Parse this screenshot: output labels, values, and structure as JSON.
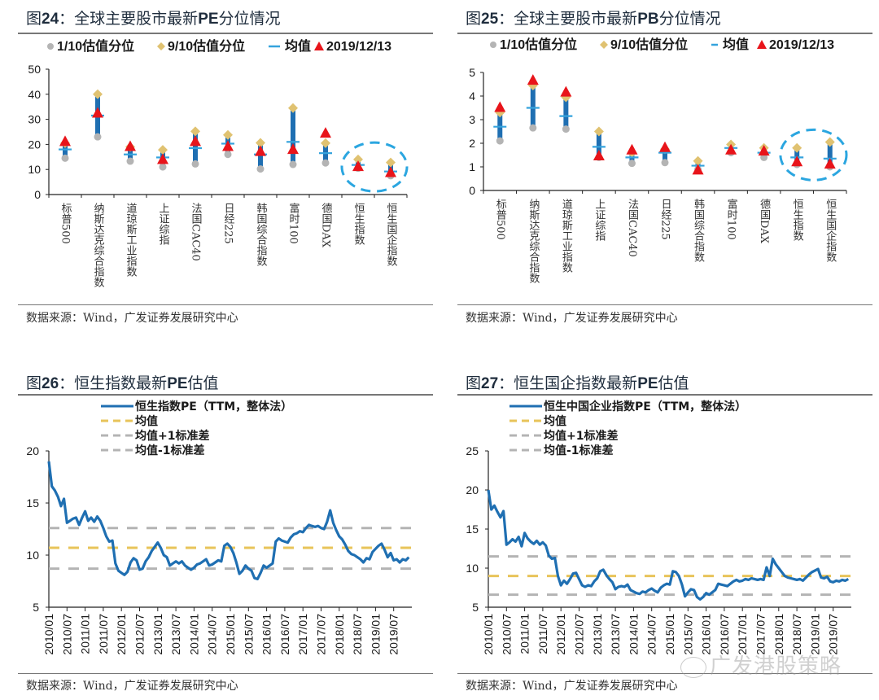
{
  "charts_meta": {
    "source": "数据来源：Wind，广发证券发展研究中心",
    "watermark": "广发港股策略"
  },
  "chart_data": [
    {
      "id": "fig24",
      "type": "scatter",
      "title_prefix": "图",
      "title_num": "24",
      "title_sep": "：",
      "title_body_a": "全球主要股市最新",
      "title_bold": "PE",
      "title_body_b": "分位情况",
      "legend": [
        "1/10估值分位",
        "9/10估值分位",
        "均值",
        "2019/12/13"
      ],
      "categories": [
        "标普500",
        "纳斯达克综合指数",
        "道琼斯工业指数",
        "上证综指",
        "法国CAC40",
        "日经225",
        "韩国综合指数",
        "富时100",
        "德国DAX",
        "恒生指数",
        "恒生国企指数"
      ],
      "ylim": [
        0,
        50
      ],
      "yticks": [
        0,
        10,
        20,
        30,
        40,
        50
      ],
      "series": [
        {
          "name": "1/10估值分位",
          "values": [
            14.5,
            23,
            13.3,
            11,
            12.2,
            16,
            10.2,
            12,
            12.6,
            10.5,
            7.5
          ]
        },
        {
          "name": "9/10估值分位",
          "values": [
            20.5,
            40,
            19,
            17.8,
            25.2,
            23.8,
            20.6,
            34.5,
            20.5,
            14,
            12.8
          ]
        },
        {
          "name": "均值",
          "values": [
            18,
            31.5,
            16,
            14.8,
            18.5,
            20.3,
            16,
            21,
            16.5,
            11.8,
            9.2
          ]
        },
        {
          "name": "2019/12/13",
          "values": [
            21,
            32.3,
            19,
            13.8,
            21,
            19,
            17,
            17.8,
            24.3,
            11,
            8.6
          ]
        }
      ],
      "highlight": [
        "恒生指数",
        "恒生国企指数"
      ],
      "colors": {
        "low": "#b4b4b4",
        "high": "#e0c271",
        "mean": "#35a3dd",
        "latest": "#e8141a",
        "range": "#1f6fb2",
        "highlight": "#2ba6e0"
      }
    },
    {
      "id": "fig25",
      "type": "scatter",
      "title_prefix": "图",
      "title_num": "25",
      "title_sep": "：",
      "title_body_a": "全球主要股市最新",
      "title_bold": "PB",
      "title_body_b": "分位情况",
      "legend": [
        "1/10估值分位",
        "9/10估值分位",
        "均值",
        "2019/12/13"
      ],
      "categories": [
        "标普500",
        "纳斯达克综合指数",
        "道琼斯工业指数",
        "上证综指",
        "法国CAC40",
        "日经225",
        "韩国综合指数",
        "富时100",
        "德国DAX",
        "恒生指数",
        "恒生国企指数"
      ],
      "ylim": [
        0,
        5
      ],
      "yticks": [
        0,
        1,
        2,
        3,
        4,
        5
      ],
      "series": [
        {
          "name": "1/10估值分位",
          "values": [
            2.1,
            2.65,
            2.6,
            1.4,
            1.15,
            1.18,
            0.9,
            1.6,
            1.4,
            1.1,
            1.0
          ]
        },
        {
          "name": "9/10估值分位",
          "values": [
            3.3,
            4.45,
            3.95,
            2.5,
            1.6,
            1.75,
            1.25,
            1.95,
            1.8,
            1.8,
            2.05
          ]
        },
        {
          "name": "均值",
          "values": [
            2.7,
            3.5,
            3.15,
            1.85,
            1.4,
            1.6,
            1.05,
            1.8,
            1.6,
            1.4,
            1.35
          ]
        },
        {
          "name": "2019/12/13",
          "values": [
            3.5,
            4.65,
            4.15,
            1.45,
            1.7,
            1.8,
            0.85,
            1.7,
            1.65,
            1.2,
            1.1
          ]
        }
      ],
      "highlight": [
        "恒生指数",
        "恒生国企指数"
      ],
      "colors": {
        "low": "#b4b4b4",
        "high": "#e0c271",
        "mean": "#35a3dd",
        "latest": "#e8141a",
        "range": "#1f6fb2",
        "highlight": "#2ba6e0"
      }
    },
    {
      "id": "fig26",
      "type": "line",
      "title_prefix": "图",
      "title_num": "26",
      "title_sep": "：",
      "title_body_a": "恒生指数最新",
      "title_bold": "PE",
      "title_body_b": "估值",
      "legend": [
        "恒生指数PE（TTM，整体法）",
        "均值",
        "均值+1标准差",
        "均值-1标准差"
      ],
      "xticks": [
        "2010/01",
        "2010/07",
        "2011/01",
        "2011/07",
        "2012/01",
        "2012/07",
        "2013/01",
        "2013/07",
        "2014/01",
        "2014/07",
        "2015/01",
        "2015/07",
        "2016/01",
        "2016/07",
        "2017/01",
        "2017/07",
        "2018/01",
        "2018/07",
        "2019/01",
        "2019/07"
      ],
      "ylim": [
        5,
        20
      ],
      "yticks": [
        5,
        10,
        15,
        20
      ],
      "x_months": [
        0,
        1,
        2,
        3,
        4,
        5,
        6,
        7,
        8,
        9,
        10,
        11,
        12,
        13,
        14,
        15,
        16,
        17,
        18,
        19,
        20,
        21,
        22,
        23,
        24,
        25,
        26,
        27,
        28,
        29,
        30,
        31,
        32,
        33,
        34,
        35,
        36,
        37,
        38,
        39,
        40,
        41,
        42,
        43,
        44,
        45,
        46,
        47,
        48,
        49,
        50,
        51,
        52,
        53,
        54,
        55,
        56,
        57,
        58,
        59,
        60,
        61,
        62,
        63,
        64,
        65,
        66,
        67,
        68,
        69,
        70,
        71,
        72,
        73,
        74,
        75,
        76,
        77,
        78,
        79,
        80,
        81,
        82,
        83,
        84,
        85,
        86,
        87,
        88,
        89,
        90,
        91,
        92,
        93,
        94,
        95,
        96,
        97,
        98,
        99,
        100,
        101,
        102,
        103,
        104,
        105,
        106,
        107,
        108,
        109,
        110,
        111,
        112,
        113,
        114,
        115,
        116,
        117,
        118,
        119
      ],
      "values": [
        19.0,
        16.6,
        16.2,
        15.6,
        14.7,
        15.4,
        13.1,
        13.3,
        13.5,
        13.6,
        12.9,
        13.6,
        14.2,
        13.3,
        13.6,
        13.2,
        13.7,
        13.3,
        12.6,
        11.8,
        11.3,
        11.4,
        9.2,
        8.5,
        8.3,
        8.1,
        8.4,
        9.3,
        9.7,
        9.5,
        8.6,
        8.7,
        9.4,
        9.8,
        10.4,
        10.8,
        11.2,
        10.7,
        10.0,
        9.8,
        9.0,
        9.2,
        9.4,
        9.2,
        9.4,
        9.0,
        8.8,
        8.6,
        8.8,
        9.1,
        9.2,
        9.4,
        9.6,
        9.0,
        9.1,
        9.3,
        9.5,
        9.4,
        10.9,
        11.1,
        10.8,
        10.2,
        9.3,
        8.2,
        8.5,
        9.0,
        8.7,
        8.5,
        7.8,
        7.7,
        8.3,
        9.0,
        8.8,
        9.0,
        9.2,
        11.3,
        11.6,
        11.4,
        11.3,
        11.2,
        11.7,
        12.0,
        12.1,
        12.3,
        12.2,
        12.6,
        12.9,
        12.8,
        12.7,
        12.8,
        12.6,
        12.5,
        13.2,
        14.3,
        13.1,
        12.4,
        11.8,
        11.5,
        11.0,
        10.4,
        10.1,
        10.0,
        9.8,
        9.6,
        9.3,
        9.7,
        9.6,
        10.3,
        10.6,
        10.9,
        11.1,
        10.5,
        9.8,
        10.2,
        9.5,
        9.6,
        9.3,
        9.6,
        9.5,
        9.8
      ],
      "mean": 10.7,
      "plus1sd": 12.6,
      "minus1sd": 8.7,
      "colors": {
        "line": "#1f6fb2",
        "mean": "#e8c45a",
        "sd": "#b4b4b4"
      }
    },
    {
      "id": "fig27",
      "type": "line",
      "title_prefix": "图",
      "title_num": "27",
      "title_sep": "：",
      "title_body_a": "恒生国企指数最新",
      "title_bold": "PE",
      "title_body_b": "估值",
      "legend": [
        "恒生中国企业指数PE（TTM，整体法）",
        "均值",
        "均值+1标准差",
        "均值-1标准差"
      ],
      "xticks": [
        "2010/01",
        "2010/07",
        "2011/01",
        "2011/07",
        "2012/01",
        "2012/07",
        "2013/01",
        "2013/07",
        "2014/01",
        "2014/07",
        "2015/01",
        "2015/07",
        "2016/01",
        "2016/07",
        "2017/01",
        "2017/07",
        "2018/01",
        "2018/07",
        "2019/01",
        "2019/07"
      ],
      "ylim": [
        5,
        25
      ],
      "yticks": [
        5,
        10,
        15,
        20,
        25
      ],
      "x_months": [
        0,
        1,
        2,
        3,
        4,
        5,
        6,
        7,
        8,
        9,
        10,
        11,
        12,
        13,
        14,
        15,
        16,
        17,
        18,
        19,
        20,
        21,
        22,
        23,
        24,
        25,
        26,
        27,
        28,
        29,
        30,
        31,
        32,
        33,
        34,
        35,
        36,
        37,
        38,
        39,
        40,
        41,
        42,
        43,
        44,
        45,
        46,
        47,
        48,
        49,
        50,
        51,
        52,
        53,
        54,
        55,
        56,
        57,
        58,
        59,
        60,
        61,
        62,
        63,
        64,
        65,
        66,
        67,
        68,
        69,
        70,
        71,
        72,
        73,
        74,
        75,
        76,
        77,
        78,
        79,
        80,
        81,
        82,
        83,
        84,
        85,
        86,
        87,
        88,
        89,
        90,
        91,
        92,
        93,
        94,
        95,
        96,
        97,
        98,
        99,
        100,
        101,
        102,
        103,
        104,
        105,
        106,
        107,
        108,
        109,
        110,
        111,
        112,
        113,
        114,
        115,
        116,
        117,
        118,
        119
      ],
      "values": [
        20.0,
        17.5,
        18.0,
        17.2,
        16.5,
        17.3,
        13.0,
        13.3,
        13.7,
        13.4,
        14.0,
        12.8,
        14.5,
        13.8,
        13.4,
        13.1,
        13.5,
        13.0,
        13.3,
        12.9,
        11.6,
        11.2,
        11.3,
        9.0,
        7.8,
        8.4,
        8.0,
        8.6,
        9.3,
        9.4,
        8.6,
        7.8,
        7.6,
        7.8,
        7.7,
        8.3,
        8.7,
        9.6,
        9.8,
        9.1,
        8.6,
        8.2,
        7.3,
        7.6,
        7.7,
        7.6,
        7.9,
        7.2,
        7.0,
        6.8,
        6.7,
        7.0,
        6.9,
        7.2,
        7.4,
        7.1,
        6.9,
        7.5,
        7.8,
        8.0,
        7.9,
        9.6,
        9.5,
        9.0,
        7.9,
        6.4,
        6.9,
        7.3,
        7.2,
        6.3,
        6.0,
        6.3,
        6.8,
        6.6,
        6.9,
        7.2,
        8.0,
        7.9,
        7.8,
        7.7,
        8.0,
        8.3,
        8.5,
        8.3,
        8.4,
        8.6,
        8.5,
        8.7,
        8.6,
        8.5,
        8.6,
        8.5,
        10.1,
        9.0,
        11.2,
        10.5,
        10.0,
        9.5,
        9.0,
        8.8,
        8.7,
        8.6,
        8.5,
        8.6,
        8.4,
        8.8,
        9.2,
        9.5,
        9.7,
        9.9,
        8.8,
        8.7,
        8.9,
        8.3,
        8.2,
        8.4,
        8.3,
        8.5,
        8.4,
        8.6
      ],
      "mean": 9.0,
      "plus1sd": 11.5,
      "minus1sd": 6.6,
      "colors": {
        "line": "#1f6fb2",
        "mean": "#e8c45a",
        "sd": "#b4b4b4"
      }
    }
  ]
}
